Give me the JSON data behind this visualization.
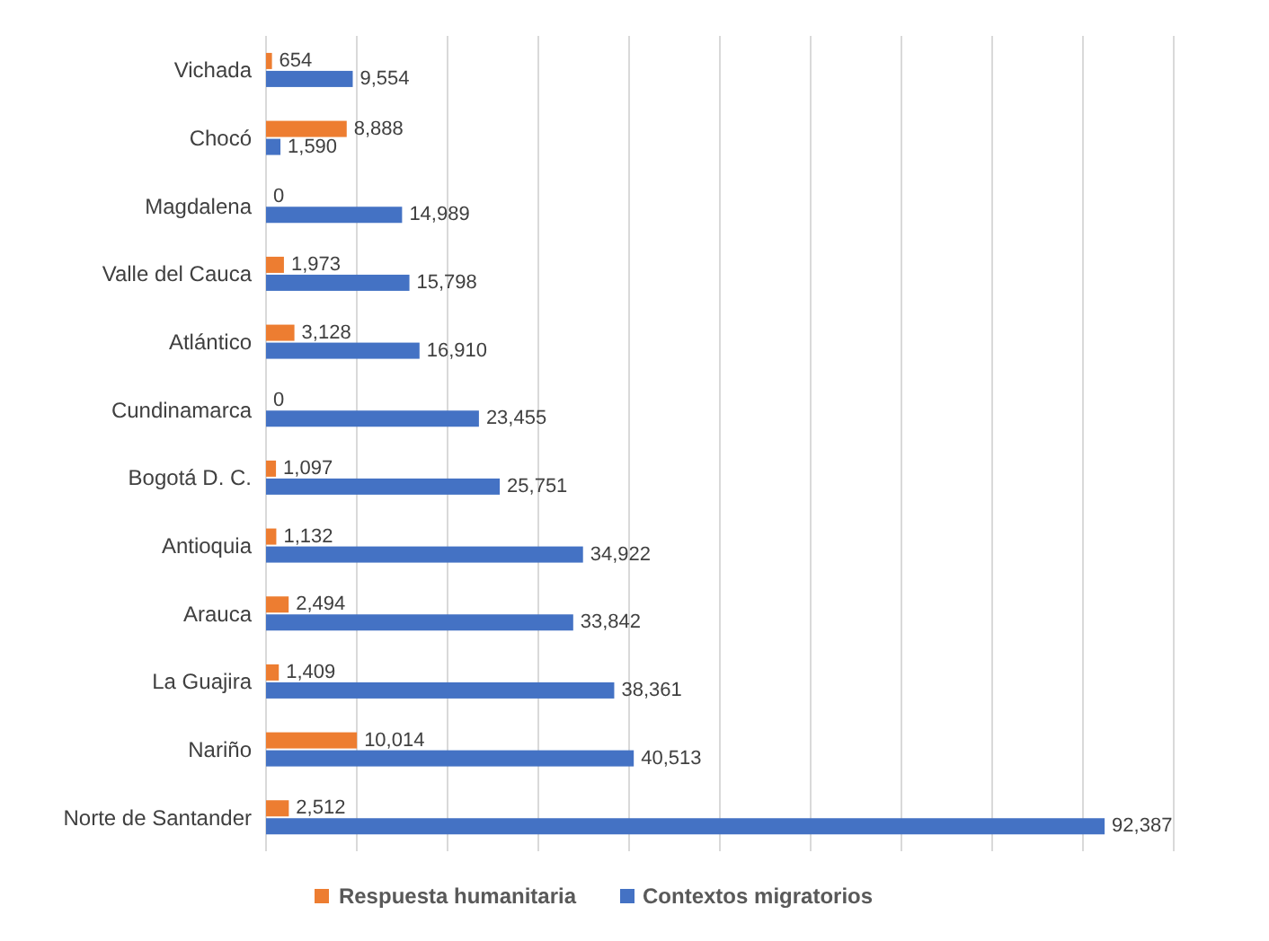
{
  "chart_data": {
    "type": "bar",
    "orientation": "horizontal",
    "categories": [
      "Vichada",
      "Chocó",
      "Magdalena",
      "Valle del Cauca",
      "Atlántico",
      "Cundinamarca",
      "Bogotá D. C.",
      "Antioquia",
      "Arauca",
      "La Guajira",
      "Nariño",
      "Norte de Santander"
    ],
    "series": [
      {
        "name": "Respuesta humanitaria",
        "color": "#ed7d31",
        "values": [
          654,
          8888,
          0,
          1973,
          3128,
          0,
          1097,
          1132,
          2494,
          1409,
          10014,
          2512
        ],
        "value_labels": [
          "654",
          "8,888",
          "0",
          "1,973",
          "3,128",
          "0",
          "1,097",
          "1,132",
          "2,494",
          "1,409",
          "10,014",
          "2,512"
        ]
      },
      {
        "name": "Contextos migratorios",
        "color": "#4472c4",
        "values": [
          9554,
          1590,
          14989,
          15798,
          16910,
          23455,
          25751,
          34922,
          33842,
          38361,
          40513,
          92387
        ],
        "value_labels": [
          "9,554",
          "1,590",
          "14,989",
          "15,798",
          "16,910",
          "23,455",
          "25,751",
          "34,922",
          "33,842",
          "38,361",
          "40,513",
          "92,387"
        ]
      }
    ],
    "xlim": [
      0,
      100000
    ],
    "xticks": [
      {
        "value": 0,
        "label": null
      },
      {
        "value": 10000,
        "label": null
      },
      {
        "value": 20000,
        "label": null
      },
      {
        "value": 30000,
        "label": null
      },
      {
        "value": 40000,
        "label": null
      },
      {
        "value": 50000,
        "label": null
      },
      {
        "value": 60000,
        "label": null
      },
      {
        "value": 70000,
        "label": null
      },
      {
        "value": 80000,
        "label": null
      },
      {
        "value": 90000,
        "label": null
      },
      {
        "value": 100000,
        "label": null
      }
    ],
    "grid": "x",
    "legend": "bottom"
  }
}
